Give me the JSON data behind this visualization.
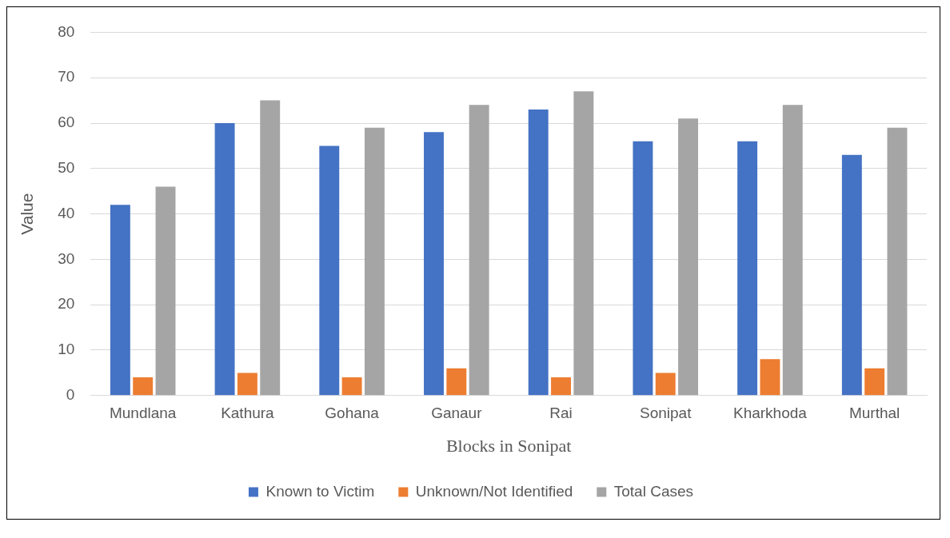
{
  "chart_data": {
    "type": "bar",
    "xlabel": "Blocks in Sonipat",
    "ylabel": "Value",
    "categories": [
      "Mundlana",
      "Kathura",
      "Gohana",
      "Ganaur",
      "Rai",
      "Sonipat",
      "Kharkhoda",
      "Murthal"
    ],
    "series": [
      {
        "name": "Known to Victim",
        "color": "#4472c4",
        "values": [
          42,
          60,
          55,
          58,
          63,
          56,
          56,
          53
        ]
      },
      {
        "name": "Unknown/Not Identified",
        "color": "#ed7d31",
        "values": [
          4,
          5,
          4,
          6,
          4,
          5,
          8,
          6
        ]
      },
      {
        "name": "Total Cases",
        "color": "#a5a5a5",
        "values": [
          46,
          65,
          59,
          64,
          67,
          61,
          64,
          59
        ]
      }
    ],
    "ylim": [
      0,
      80
    ],
    "yticks": [
      0,
      10,
      20,
      30,
      40,
      50,
      60,
      70,
      80
    ],
    "grid": "y",
    "legend": "bottom"
  }
}
